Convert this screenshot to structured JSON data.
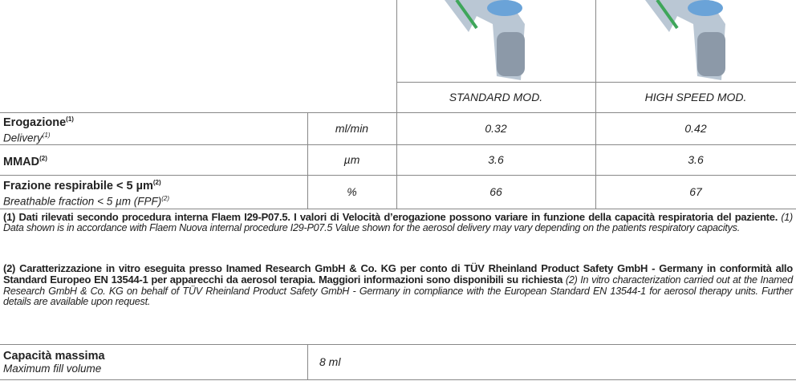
{
  "header": {
    "columns": [
      "STANDARD MOD.",
      "HIGH SPEED MOD."
    ]
  },
  "table": {
    "rows": [
      {
        "label": "Erogazione",
        "label_sup": "(1)",
        "sublabel": "Delivery",
        "sublabel_sup": "(1)",
        "unit": "ml/min",
        "values": [
          0.32,
          0.42
        ]
      },
      {
        "label": "MMAD",
        "label_sup": "(2)",
        "unit": "µm",
        "values": [
          3.6,
          3.6
        ]
      },
      {
        "label": "Frazione respirabile < 5 µm",
        "label_sup": "(2)",
        "sublabel": "Breathable fraction < 5 µm (FPF)",
        "sublabel_sup": "(2)",
        "unit": "%",
        "values": [
          66,
          67
        ]
      }
    ]
  },
  "notes": [
    {
      "bold": "(1) Dati rilevati secondo procedura interna Flaem I29-P07.5. I valori di Velocità d’erogazione possono variare in funzione della capacità respiratoria del paziente.",
      "italic": "(1) Data shown is in accordance with Flaem Nuova internal procedure I29-P07.5 Value shown for the aerosol delivery may vary depending on the patients respiratory capacitys."
    },
    {
      "bold": "(2) Caratterizzazione in vitro eseguita presso Inamed Research GmbH & Co. KG per conto di TÜV Rheinland Product Safety GmbH - Germany in conformità allo Standard Europeo EN 13544-1 per apparecchi da aerosol terapia. Maggiori informazioni sono disponibili su richiesta",
      "italic": "(2) In vitro characterization carried out at the Inamed Research GmbH & Co. KG on behalf of TÜV Rheinland Product Safety GmbH - Germany in compliance with the European Standard EN 13544-1 for aerosol therapy units. Further details are available upon request."
    }
  ],
  "capacity": {
    "label": "Capacità massima",
    "sublabel": "Maximum fill volume",
    "value": "8 ml"
  }
}
